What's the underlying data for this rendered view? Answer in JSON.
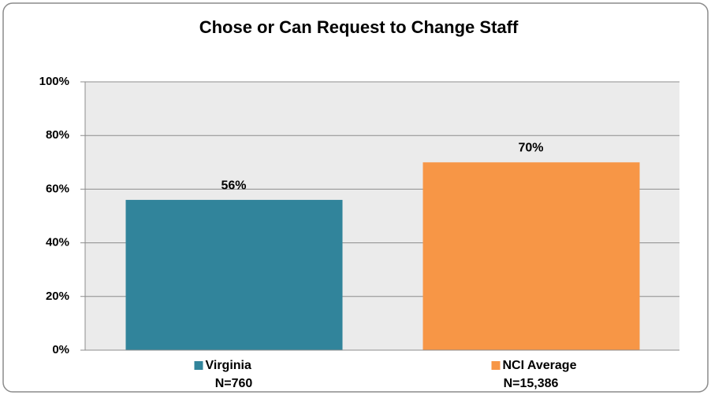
{
  "chart_data": {
    "type": "bar",
    "title": "Chose or Can Request to Change Staff",
    "categories": [
      "Virginia",
      "NCI Average"
    ],
    "sample_sizes": [
      "N=760",
      "N=15,386"
    ],
    "values": [
      56,
      70
    ],
    "value_labels": [
      "56%",
      "70%"
    ],
    "colors": [
      "#31849b",
      "#f79646"
    ],
    "ylim": [
      0,
      100
    ],
    "yticks": [
      {
        "value": 0,
        "label": "0%"
      },
      {
        "value": 20,
        "label": "20%"
      },
      {
        "value": 40,
        "label": "40%"
      },
      {
        "value": 60,
        "label": "60%"
      },
      {
        "value": 80,
        "label": "80%"
      },
      {
        "value": 100,
        "label": "100%"
      }
    ],
    "grid": true
  }
}
